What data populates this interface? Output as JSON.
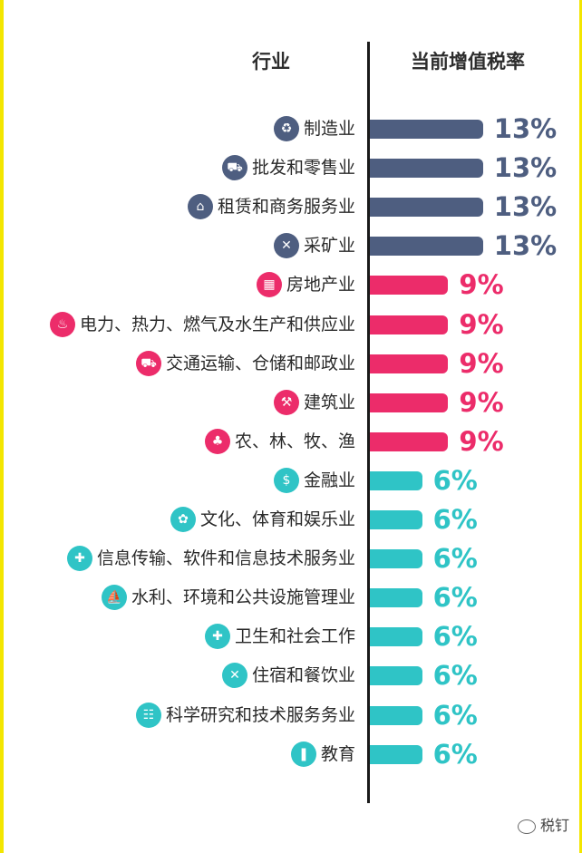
{
  "headers": {
    "industry": "行业",
    "rate": "当前增值税率"
  },
  "watermark": "税钉",
  "colors": {
    "13%": "#4e5e80",
    "9%": "#ec2c6a",
    "6%": "#2fc4c6"
  },
  "chart_data": {
    "type": "bar",
    "orientation": "horizontal",
    "title": "",
    "xlabel": "当前增值税率",
    "ylabel": "行业",
    "unit": "%",
    "xlim": [
      0,
      13
    ],
    "categories": [
      "制造业",
      "批发和零售业",
      "租赁和商务服务业",
      "采矿业",
      "房地产业",
      "电力、热力、燃气及水生产和供应业",
      "交通运输、仓储和邮政业",
      "建筑业",
      "农、林、牧、渔",
      "金融业",
      "文化、体育和娱乐业",
      "信息传输、软件和信息技术服务业",
      "水利、环境和公共设施管理业",
      "卫生和社会工作",
      "住宿和餐饮业",
      "科学研究和技术服务务业",
      "教育"
    ],
    "values": [
      13,
      13,
      13,
      13,
      9,
      9,
      9,
      9,
      9,
      6,
      6,
      6,
      6,
      6,
      6,
      6,
      6
    ],
    "value_labels": [
      "13%",
      "13%",
      "13%",
      "13%",
      "9%",
      "9%",
      "9%",
      "9%",
      "9%",
      "6%",
      "6%",
      "6%",
      "6%",
      "6%",
      "6%",
      "6%",
      "6%"
    ],
    "icons": [
      "recycle-icon",
      "cart-icon",
      "building-icon",
      "tools-icon",
      "office-icon",
      "flame-icon",
      "truck-icon",
      "crane-icon",
      "farm-icon",
      "moneybag-icon",
      "palette-icon",
      "network-icon",
      "ship-icon",
      "medical-icon",
      "utensils-icon",
      "hierarchy-icon",
      "books-icon"
    ],
    "grid": false,
    "legend": "none"
  }
}
